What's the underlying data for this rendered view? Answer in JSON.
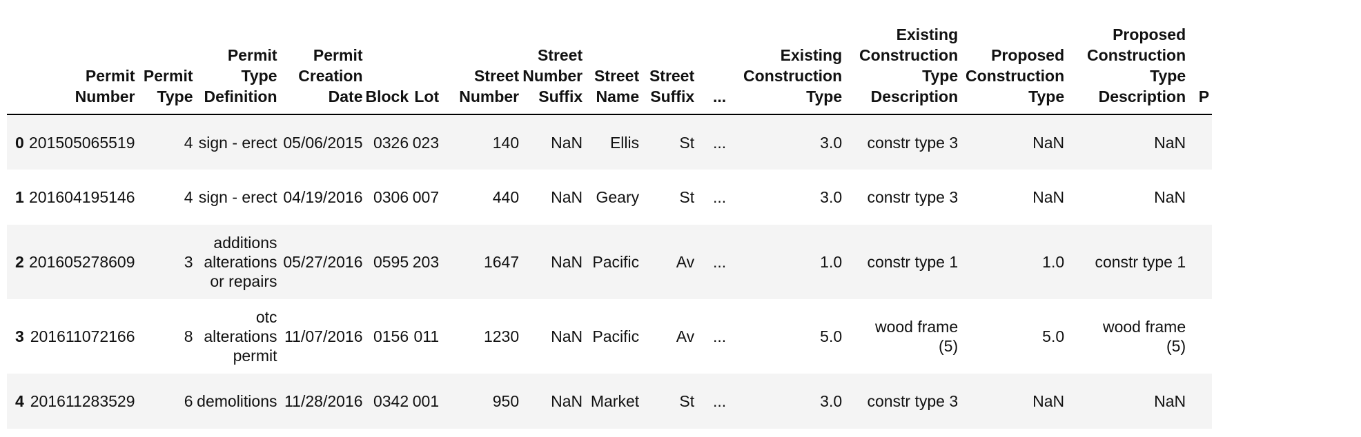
{
  "table": {
    "ellipsis": "...",
    "columns": [
      {
        "lines": [
          "Permit",
          "Number"
        ]
      },
      {
        "lines": [
          "Permit",
          "Type"
        ]
      },
      {
        "lines": [
          "Permit",
          "Type",
          "Definition"
        ]
      },
      {
        "lines": [
          "Permit",
          "Creation",
          "Date"
        ]
      },
      {
        "lines": [
          "Block"
        ]
      },
      {
        "lines": [
          "Lot"
        ]
      },
      {
        "lines": [
          "Street",
          "Number"
        ]
      },
      {
        "lines": [
          "Street",
          "Number",
          "Suffix"
        ]
      },
      {
        "lines": [
          "Street",
          "Name"
        ]
      },
      {
        "lines": [
          "Street",
          "Suffix"
        ]
      },
      {
        "lines": [
          "..."
        ]
      },
      {
        "lines": [
          "Existing",
          "Construction",
          "Type"
        ]
      },
      {
        "lines": [
          "Existing",
          "Construction",
          "Type",
          "Description"
        ]
      },
      {
        "lines": [
          "Proposed",
          "Construction",
          "Type"
        ]
      },
      {
        "lines": [
          "Proposed",
          "Construction",
          "Type",
          "Description"
        ]
      },
      {
        "lines": [
          "P"
        ]
      }
    ],
    "rows": [
      {
        "index": "0",
        "cells": [
          [
            "201505065519"
          ],
          [
            "4"
          ],
          [
            "sign - erect"
          ],
          [
            "05/06/2015"
          ],
          [
            "0326"
          ],
          [
            "023"
          ],
          [
            "140"
          ],
          [
            "NaN"
          ],
          [
            "Ellis"
          ],
          [
            "St"
          ],
          [
            "..."
          ],
          [
            "3.0"
          ],
          [
            "constr type 3"
          ],
          [
            "NaN"
          ],
          [
            "NaN"
          ],
          [
            ""
          ]
        ]
      },
      {
        "index": "1",
        "cells": [
          [
            "201604195146"
          ],
          [
            "4"
          ],
          [
            "sign - erect"
          ],
          [
            "04/19/2016"
          ],
          [
            "0306"
          ],
          [
            "007"
          ],
          [
            "440"
          ],
          [
            "NaN"
          ],
          [
            "Geary"
          ],
          [
            "St"
          ],
          [
            "..."
          ],
          [
            "3.0"
          ],
          [
            "constr type 3"
          ],
          [
            "NaN"
          ],
          [
            "NaN"
          ],
          [
            ""
          ]
        ]
      },
      {
        "index": "2",
        "cells": [
          [
            "201605278609"
          ],
          [
            "3"
          ],
          [
            "additions",
            "alterations",
            "or repairs"
          ],
          [
            "05/27/2016"
          ],
          [
            "0595"
          ],
          [
            "203"
          ],
          [
            "1647"
          ],
          [
            "NaN"
          ],
          [
            "Pacific"
          ],
          [
            "Av"
          ],
          [
            "..."
          ],
          [
            "1.0"
          ],
          [
            "constr type 1"
          ],
          [
            "1.0"
          ],
          [
            "constr type 1"
          ],
          [
            ""
          ]
        ]
      },
      {
        "index": "3",
        "cells": [
          [
            "201611072166"
          ],
          [
            "8"
          ],
          [
            "otc",
            "alterations",
            "permit"
          ],
          [
            "11/07/2016"
          ],
          [
            "0156"
          ],
          [
            "011"
          ],
          [
            "1230"
          ],
          [
            "NaN"
          ],
          [
            "Pacific"
          ],
          [
            "Av"
          ],
          [
            "..."
          ],
          [
            "5.0"
          ],
          [
            "wood frame",
            "(5)"
          ],
          [
            "5.0"
          ],
          [
            "wood frame",
            "(5)"
          ],
          [
            ""
          ]
        ]
      },
      {
        "index": "4",
        "cells": [
          [
            "201611283529"
          ],
          [
            "6"
          ],
          [
            "demolitions"
          ],
          [
            "11/28/2016"
          ],
          [
            "0342"
          ],
          [
            "001"
          ],
          [
            "950"
          ],
          [
            "NaN"
          ],
          [
            "Market"
          ],
          [
            "St"
          ],
          [
            "..."
          ],
          [
            "3.0"
          ],
          [
            "constr type 3"
          ],
          [
            "NaN"
          ],
          [
            "NaN"
          ],
          [
            ""
          ]
        ]
      }
    ]
  }
}
